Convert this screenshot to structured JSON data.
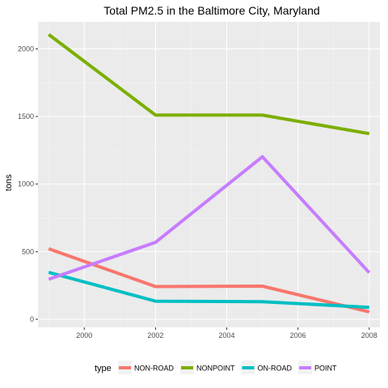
{
  "chart_data": {
    "type": "line",
    "title": "Total PM2.5 in the Baltimore City, Maryland",
    "xlabel": "",
    "ylabel": "tons",
    "x": [
      1999,
      2002,
      2005,
      2008
    ],
    "xlim": [
      1998.7,
      2008.3
    ],
    "ylim": [
      -60,
      2200
    ],
    "x_ticks": [
      2000,
      2002,
      2004,
      2006,
      2008
    ],
    "y_ticks": [
      0,
      500,
      1000,
      1500,
      2000
    ],
    "grid": true,
    "legend": {
      "title": "type",
      "position": "bottom"
    },
    "series": [
      {
        "name": "NON-ROAD",
        "color": "#F8766D",
        "values": [
          522,
          242,
          245,
          55
        ]
      },
      {
        "name": "NONPOINT",
        "color": "#7CAE00",
        "values": [
          2107,
          1510,
          1510,
          1373
        ]
      },
      {
        "name": "ON-ROAD",
        "color": "#00BFC4",
        "values": [
          347,
          134,
          130,
          88
        ]
      },
      {
        "name": "POINT",
        "color": "#C77CFF",
        "values": [
          296,
          569,
          1202,
          345
        ]
      }
    ]
  }
}
